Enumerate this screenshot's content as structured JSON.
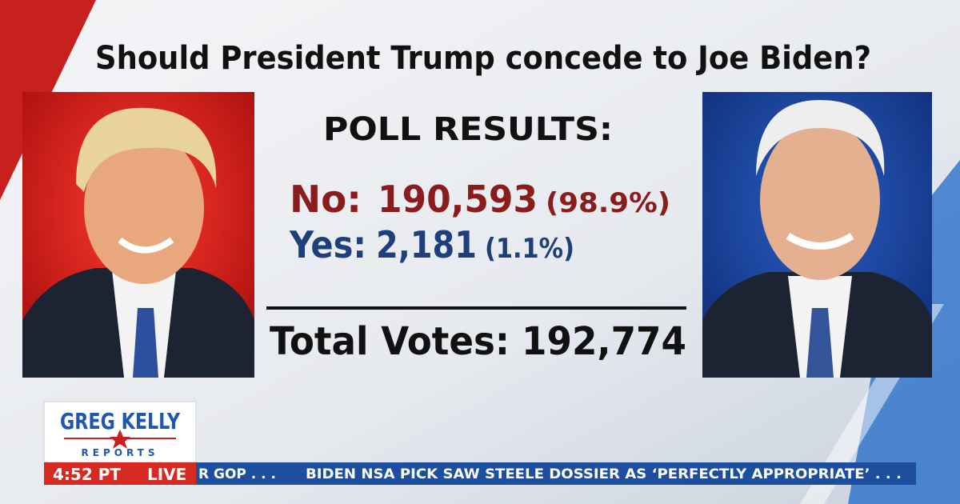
{
  "header": {
    "title": "Should President Trump concede to Joe Biden?"
  },
  "poll": {
    "heading": "POLL RESULTS:",
    "results": [
      {
        "label": "No:",
        "count": "190,593",
        "percent": "(98.9%)"
      },
      {
        "label": "Yes:",
        "count": "2,181",
        "percent": "(1.1%)"
      }
    ],
    "total": {
      "label": "Total Votes:",
      "count": "192,774"
    }
  },
  "banner": {
    "show": "GREG KELLY",
    "subtitle": "REPORTS",
    "time": "4:52 PT",
    "status": "LIVE",
    "ticker": [
      "R GOP . . .",
      "BIDEN NSA PICK SAW STEELE DOSSIER AS ‘PERFECTLY APPROPRIATE’ . . ."
    ]
  }
}
